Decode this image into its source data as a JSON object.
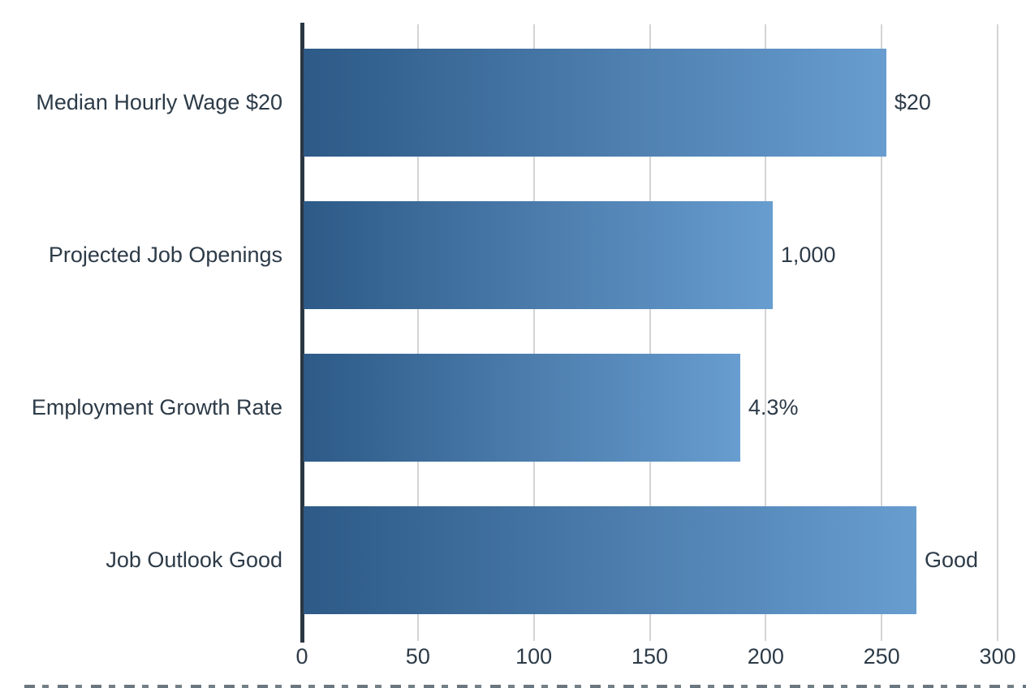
{
  "colors": {
    "background": "#ffffff",
    "bar_gradient_start": "#2d5a87",
    "bar_gradient_end": "#689dd0",
    "axis_line": "#2b3743",
    "gridline": "#d4d4d4",
    "text": "#2d3b48"
  },
  "chart_data": {
    "type": "bar",
    "orientation": "horizontal",
    "title": "",
    "xlabel": "",
    "ylabel": "",
    "grid": true,
    "legend": false,
    "xlim": [
      0,
      300
    ],
    "x_ticks": [
      0,
      50,
      100,
      150,
      200,
      250,
      300
    ],
    "categories": [
      "Median Hourly Wage $20",
      "Projected Job Openings",
      "Employment Growth Rate",
      "Job Outlook Good"
    ],
    "value_labels": [
      "$20",
      "1,000",
      "4.3%",
      "Good"
    ],
    "bar_lengths": [
      252,
      203,
      189,
      265
    ]
  }
}
